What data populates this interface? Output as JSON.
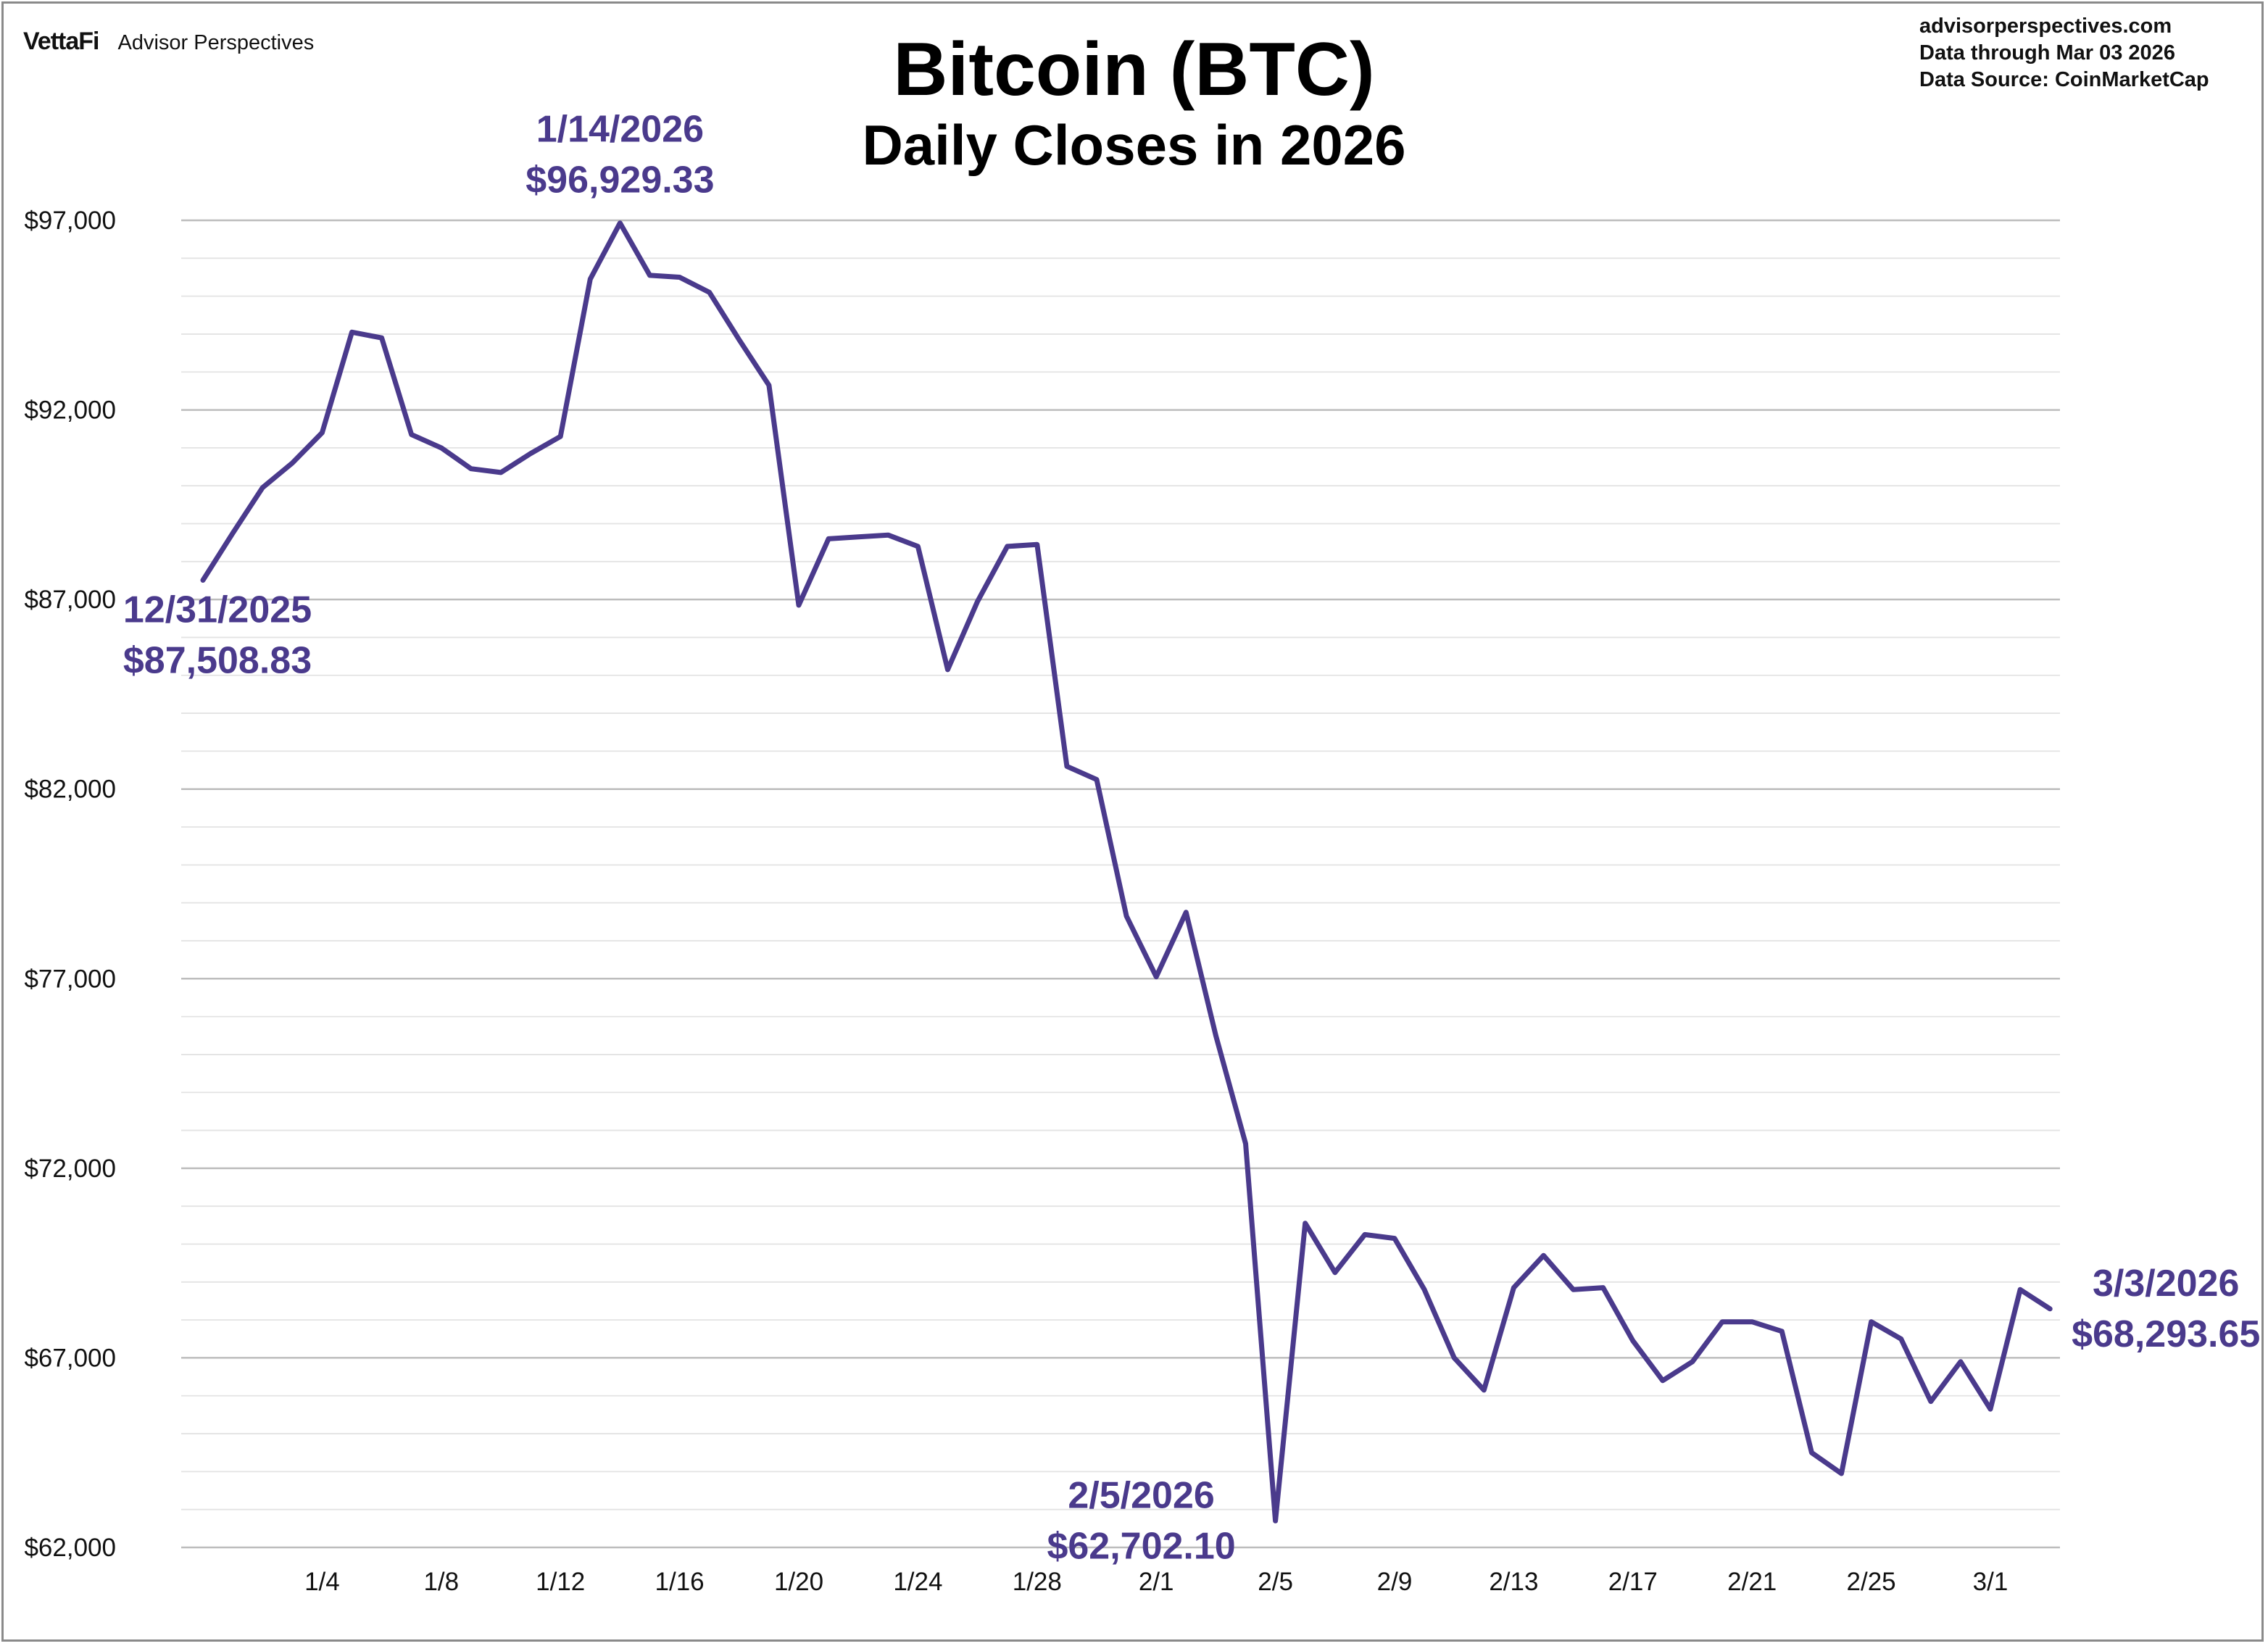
{
  "brand": {
    "name": "VettaFi",
    "product": "Advisor Perspectives"
  },
  "meta": {
    "website": "advisorperspectives.com",
    "data_through": "Data through  Mar 03 2026",
    "data_source": "Data Source:  CoinMarketCap"
  },
  "colors": {
    "line": "#4a3a8c",
    "grid": "#cfcfcf",
    "text": "#111111"
  },
  "chart_data": {
    "type": "line",
    "title": "Bitcoin (BTC)",
    "subtitle": "Daily Closes in 2026",
    "xlabel": "",
    "ylabel": "",
    "ylim": [
      62000,
      97000
    ],
    "grid": true,
    "y_ticks": [
      {
        "value": 97000,
        "label": "$97,000"
      },
      {
        "value": 92000,
        "label": "$92,000"
      },
      {
        "value": 87000,
        "label": "$87,000"
      },
      {
        "value": 82000,
        "label": "$82,000"
      },
      {
        "value": 77000,
        "label": "$77,000"
      },
      {
        "value": 72000,
        "label": "$72,000"
      },
      {
        "value": 67000,
        "label": "$67,000"
      },
      {
        "value": 62000,
        "label": "$62,000"
      }
    ],
    "x_ticks": [
      {
        "index": 4,
        "label": "1/4"
      },
      {
        "index": 8,
        "label": "1/8"
      },
      {
        "index": 12,
        "label": "1/12"
      },
      {
        "index": 16,
        "label": "1/16"
      },
      {
        "index": 20,
        "label": "1/20"
      },
      {
        "index": 24,
        "label": "1/24"
      },
      {
        "index": 28,
        "label": "1/28"
      },
      {
        "index": 32,
        "label": "2/1"
      },
      {
        "index": 36,
        "label": "2/5"
      },
      {
        "index": 40,
        "label": "2/9"
      },
      {
        "index": 44,
        "label": "2/13"
      },
      {
        "index": 48,
        "label": "2/17"
      },
      {
        "index": 52,
        "label": "2/21"
      },
      {
        "index": 56,
        "label": "2/25"
      },
      {
        "index": 60,
        "label": "3/1"
      }
    ],
    "series": [
      {
        "name": "Bitcoin (BTC) daily close",
        "values": [
          87508.83,
          88750,
          89950,
          90600,
          91400,
          94050,
          93900,
          91350,
          91000,
          90450,
          90350,
          90850,
          91300,
          95450,
          96929.33,
          95550,
          95500,
          95100,
          93850,
          92650,
          86850,
          88600,
          88650,
          88700,
          88400,
          85150,
          86950,
          88400,
          88450,
          82600,
          82250,
          78650,
          77050,
          78750,
          75500,
          72650,
          62702.1,
          70550,
          69250,
          70250,
          70150,
          68800,
          67000,
          66150,
          68850,
          69700,
          68800,
          68850,
          67450,
          66400,
          66900,
          67950,
          67950,
          67700,
          64500,
          63950,
          67950,
          67500,
          65850,
          66900,
          65650,
          68800,
          68293.65
        ]
      }
    ],
    "annotations": [
      {
        "index": 0,
        "date": "12/31/2025",
        "value": "$87,508.83"
      },
      {
        "index": 14,
        "date": "1/14/2026",
        "value": "$96,929.33"
      },
      {
        "index": 36,
        "date": "2/5/2026",
        "value": "$62,702.10"
      },
      {
        "index": 62,
        "date": "3/3/2026",
        "value": "$68,293.65"
      }
    ]
  }
}
